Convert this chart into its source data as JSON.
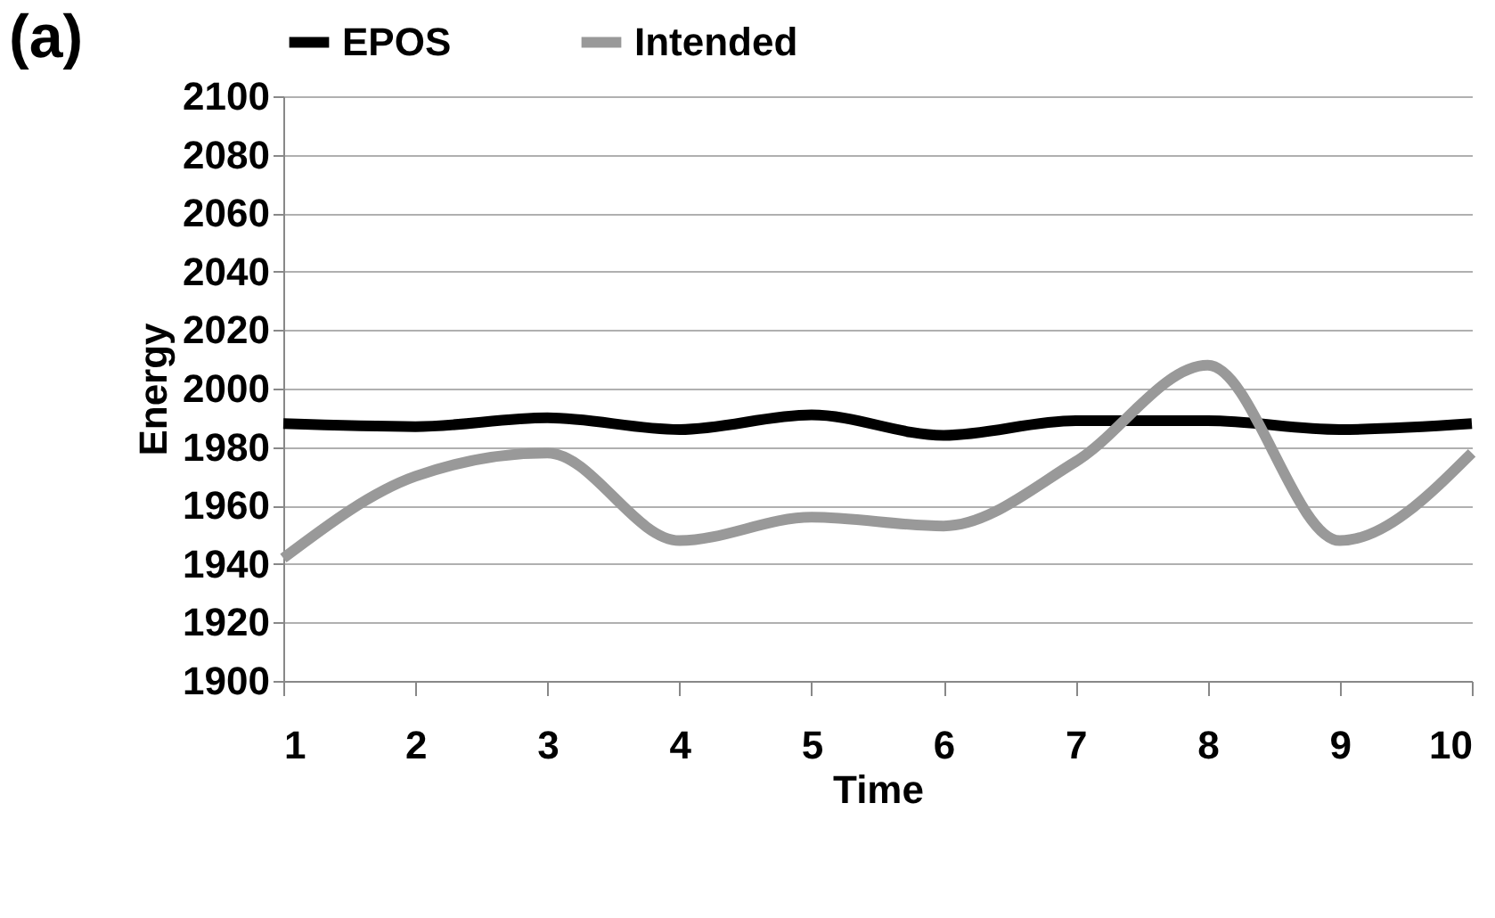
{
  "chart_data": {
    "type": "line",
    "title": "(a)",
    "xlabel": "Time",
    "ylabel": "Energy",
    "x": [
      1,
      2,
      3,
      4,
      5,
      6,
      7,
      8,
      9,
      10
    ],
    "series": [
      {
        "name": "EPOS",
        "color": "#000000",
        "values": [
          1988,
          1987,
          1990,
          1986,
          1991,
          1984,
          1989,
          1989,
          1986,
          1988
        ]
      },
      {
        "name": "Intended",
        "color": "#999999",
        "values": [
          1942,
          1970,
          1978,
          1948,
          1956,
          1953,
          1975,
          2008,
          1948,
          1978
        ]
      }
    ],
    "xlim": [
      1,
      10
    ],
    "xticks": [
      1,
      2,
      3,
      4,
      5,
      6,
      7,
      8,
      9,
      10
    ],
    "ylim": [
      1900,
      2100
    ],
    "yticks": [
      1900,
      1920,
      1940,
      1960,
      1980,
      2000,
      2020,
      2040,
      2060,
      2080,
      2100
    ],
    "grid": "y",
    "legend": "top",
    "marker": "none",
    "line_style": "solid"
  }
}
